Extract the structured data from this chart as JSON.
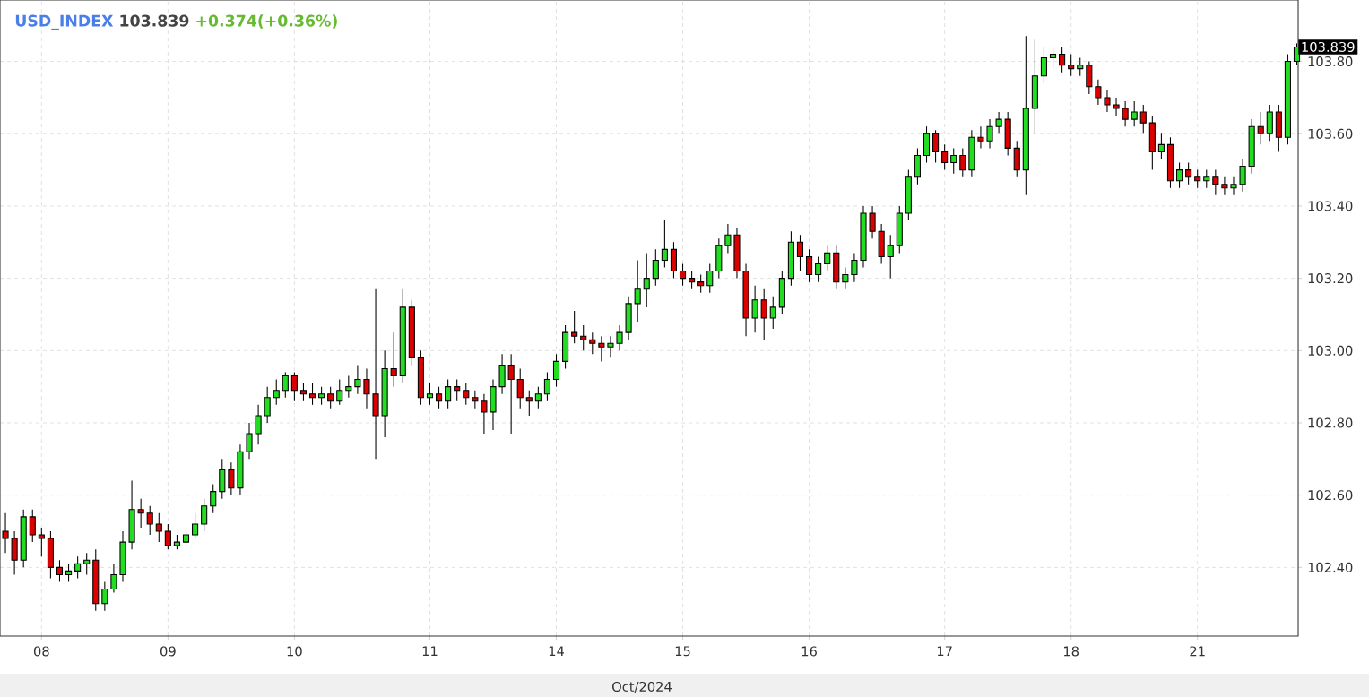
{
  "chart_data": {
    "type": "candlestick",
    "title": "USD_INDEX",
    "subtitle": "103.839",
    "annotations": [
      "+0.374(+0.36%)",
      "103.839"
    ],
    "categories": [
      null,
      null,
      null,
      null,
      "08",
      null,
      null,
      null,
      null,
      null,
      null,
      null,
      null,
      null,
      null,
      null,
      null,
      null,
      "09",
      null,
      null,
      null,
      null,
      null,
      null,
      null,
      null,
      null,
      null,
      null,
      null,
      null,
      "10",
      null,
      null,
      null,
      null,
      null,
      null,
      null,
      null,
      null,
      null,
      null,
      null,
      null,
      null,
      "11",
      null,
      null,
      null,
      null,
      null,
      null,
      null,
      null,
      null,
      null,
      null,
      null,
      null,
      "14",
      null,
      null,
      null,
      null,
      null,
      null,
      null,
      null,
      null,
      null,
      null,
      null,
      null,
      "15",
      null,
      null,
      null,
      null,
      null,
      null,
      null,
      null,
      null,
      null,
      null,
      null,
      null,
      "16",
      null,
      null,
      null,
      null,
      null,
      null,
      null,
      null,
      null,
      null,
      null,
      null,
      null,
      null,
      "17",
      null,
      null,
      null,
      null,
      null,
      null,
      null,
      null,
      null,
      null,
      null,
      null,
      null,
      "18",
      null,
      null,
      null,
      null,
      null,
      null,
      null,
      null,
      null,
      null,
      null,
      null,
      null,
      "21",
      null,
      null,
      null,
      null,
      null,
      null,
      null,
      null,
      null,
      null,
      null
    ],
    "xlabel": "Oct/2024",
    "ylim": [
      102.21,
      103.97
    ],
    "yticks": [
      {
        "value": 102.4,
        "label": "102.40"
      },
      {
        "value": 102.6,
        "label": "102.60"
      },
      {
        "value": 102.8,
        "label": "102.80"
      },
      {
        "value": 103.0,
        "label": "103.00"
      },
      {
        "value": 103.2,
        "label": "103.20"
      },
      {
        "value": 103.4,
        "label": "103.40"
      },
      {
        "value": 103.6,
        "label": "103.60"
      },
      {
        "value": 103.8,
        "label": "103.80"
      }
    ],
    "grid": true,
    "ohlc": [
      [
        102.5,
        102.55,
        102.44,
        102.48
      ],
      [
        102.48,
        102.5,
        102.38,
        102.42
      ],
      [
        102.42,
        102.56,
        102.4,
        102.54
      ],
      [
        102.54,
        102.56,
        102.47,
        102.49
      ],
      [
        102.49,
        102.51,
        102.43,
        102.48
      ],
      [
        102.48,
        102.5,
        102.37,
        102.4
      ],
      [
        102.4,
        102.42,
        102.36,
        102.38
      ],
      [
        102.38,
        102.41,
        102.36,
        102.39
      ],
      [
        102.39,
        102.43,
        102.37,
        102.41
      ],
      [
        102.41,
        102.44,
        102.38,
        102.42
      ],
      [
        102.42,
        102.45,
        102.28,
        102.3
      ],
      [
        102.3,
        102.36,
        102.28,
        102.34
      ],
      [
        102.34,
        102.41,
        102.33,
        102.38
      ],
      [
        102.38,
        102.5,
        102.36,
        102.47
      ],
      [
        102.47,
        102.64,
        102.45,
        102.56
      ],
      [
        102.56,
        102.59,
        102.51,
        102.55
      ],
      [
        102.55,
        102.57,
        102.49,
        102.52
      ],
      [
        102.52,
        102.55,
        102.47,
        102.5
      ],
      [
        102.5,
        102.52,
        102.45,
        102.46
      ],
      [
        102.46,
        102.49,
        102.45,
        102.47
      ],
      [
        102.47,
        102.51,
        102.46,
        102.49
      ],
      [
        102.49,
        102.55,
        102.48,
        102.52
      ],
      [
        102.52,
        102.59,
        102.5,
        102.57
      ],
      [
        102.57,
        102.63,
        102.55,
        102.61
      ],
      [
        102.61,
        102.7,
        102.59,
        102.67
      ],
      [
        102.67,
        102.69,
        102.6,
        102.62
      ],
      [
        102.62,
        102.74,
        102.6,
        102.72
      ],
      [
        102.72,
        102.8,
        102.7,
        102.77
      ],
      [
        102.77,
        102.85,
        102.74,
        102.82
      ],
      [
        102.82,
        102.9,
        102.8,
        102.87
      ],
      [
        102.87,
        102.92,
        102.85,
        102.89
      ],
      [
        102.89,
        102.94,
        102.87,
        102.93
      ],
      [
        102.93,
        102.94,
        102.86,
        102.89
      ],
      [
        102.89,
        102.91,
        102.86,
        102.88
      ],
      [
        102.88,
        102.91,
        102.85,
        102.87
      ],
      [
        102.87,
        102.9,
        102.85,
        102.88
      ],
      [
        102.88,
        102.9,
        102.84,
        102.86
      ],
      [
        102.86,
        102.92,
        102.85,
        102.89
      ],
      [
        102.89,
        102.93,
        102.87,
        102.9
      ],
      [
        102.9,
        102.96,
        102.88,
        102.92
      ],
      [
        102.92,
        102.95,
        102.84,
        102.88
      ],
      [
        102.88,
        103.17,
        102.7,
        102.82
      ],
      [
        102.82,
        103.0,
        102.76,
        102.95
      ],
      [
        102.95,
        103.05,
        102.9,
        102.93
      ],
      [
        102.93,
        103.17,
        102.91,
        103.12
      ],
      [
        103.12,
        103.14,
        102.96,
        102.98
      ],
      [
        102.98,
        103.0,
        102.85,
        102.87
      ],
      [
        102.87,
        102.91,
        102.85,
        102.88
      ],
      [
        102.88,
        102.9,
        102.84,
        102.86
      ],
      [
        102.86,
        102.92,
        102.84,
        102.9
      ],
      [
        102.9,
        102.92,
        102.86,
        102.89
      ],
      [
        102.89,
        102.91,
        102.85,
        102.87
      ],
      [
        102.87,
        102.89,
        102.84,
        102.86
      ],
      [
        102.86,
        102.88,
        102.77,
        102.83
      ],
      [
        102.83,
        102.92,
        102.78,
        102.9
      ],
      [
        102.9,
        102.99,
        102.88,
        102.96
      ],
      [
        102.96,
        102.99,
        102.77,
        102.92
      ],
      [
        102.92,
        102.95,
        102.84,
        102.87
      ],
      [
        102.87,
        102.89,
        102.82,
        102.86
      ],
      [
        102.86,
        102.9,
        102.84,
        102.88
      ],
      [
        102.88,
        102.94,
        102.86,
        102.92
      ],
      [
        102.92,
        102.99,
        102.9,
        102.97
      ],
      [
        102.97,
        103.07,
        102.95,
        103.05
      ],
      [
        103.05,
        103.11,
        103.02,
        103.04
      ],
      [
        103.04,
        103.07,
        103.0,
        103.03
      ],
      [
        103.03,
        103.05,
        102.99,
        103.02
      ],
      [
        103.02,
        103.04,
        102.97,
        103.01
      ],
      [
        103.01,
        103.04,
        102.98,
        103.02
      ],
      [
        103.02,
        103.07,
        103.0,
        103.05
      ],
      [
        103.05,
        103.15,
        103.03,
        103.13
      ],
      [
        103.13,
        103.25,
        103.08,
        103.17
      ],
      [
        103.17,
        103.27,
        103.12,
        103.2
      ],
      [
        103.2,
        103.28,
        103.18,
        103.25
      ],
      [
        103.25,
        103.36,
        103.23,
        103.28
      ],
      [
        103.28,
        103.3,
        103.2,
        103.22
      ],
      [
        103.22,
        103.24,
        103.18,
        103.2
      ],
      [
        103.2,
        103.22,
        103.17,
        103.19
      ],
      [
        103.19,
        103.21,
        103.16,
        103.18
      ],
      [
        103.18,
        103.24,
        103.16,
        103.22
      ],
      [
        103.22,
        103.31,
        103.2,
        103.29
      ],
      [
        103.29,
        103.35,
        103.27,
        103.32
      ],
      [
        103.32,
        103.34,
        103.2,
        103.22
      ],
      [
        103.22,
        103.24,
        103.04,
        103.09
      ],
      [
        103.09,
        103.18,
        103.05,
        103.14
      ],
      [
        103.14,
        103.17,
        103.03,
        103.09
      ],
      [
        103.09,
        103.15,
        103.06,
        103.12
      ],
      [
        103.12,
        103.22,
        103.1,
        103.2
      ],
      [
        103.2,
        103.33,
        103.18,
        103.3
      ],
      [
        103.3,
        103.32,
        103.22,
        103.26
      ],
      [
        103.26,
        103.28,
        103.19,
        103.21
      ],
      [
        103.21,
        103.26,
        103.19,
        103.24
      ],
      [
        103.24,
        103.29,
        103.22,
        103.27
      ],
      [
        103.27,
        103.29,
        103.17,
        103.19
      ],
      [
        103.19,
        103.23,
        103.17,
        103.21
      ],
      [
        103.21,
        103.27,
        103.19,
        103.25
      ],
      [
        103.25,
        103.4,
        103.23,
        103.38
      ],
      [
        103.38,
        103.4,
        103.31,
        103.33
      ],
      [
        103.33,
        103.35,
        103.24,
        103.26
      ],
      [
        103.26,
        103.32,
        103.2,
        103.29
      ],
      [
        103.29,
        103.4,
        103.27,
        103.38
      ],
      [
        103.38,
        103.5,
        103.36,
        103.48
      ],
      [
        103.48,
        103.56,
        103.46,
        103.54
      ],
      [
        103.54,
        103.62,
        103.52,
        103.6
      ],
      [
        103.6,
        103.61,
        103.52,
        103.55
      ],
      [
        103.55,
        103.57,
        103.5,
        103.52
      ],
      [
        103.52,
        103.56,
        103.49,
        103.54
      ],
      [
        103.54,
        103.56,
        103.48,
        103.5
      ],
      [
        103.5,
        103.61,
        103.48,
        103.59
      ],
      [
        103.59,
        103.62,
        103.56,
        103.58
      ],
      [
        103.58,
        103.64,
        103.56,
        103.62
      ],
      [
        103.62,
        103.66,
        103.6,
        103.64
      ],
      [
        103.64,
        103.66,
        103.54,
        103.56
      ],
      [
        103.56,
        103.58,
        103.48,
        103.5
      ],
      [
        103.5,
        103.87,
        103.43,
        103.67
      ],
      [
        103.67,
        103.86,
        103.6,
        103.76
      ],
      [
        103.76,
        103.84,
        103.74,
        103.81
      ],
      [
        103.81,
        103.84,
        103.78,
        103.82
      ],
      [
        103.82,
        103.84,
        103.77,
        103.79
      ],
      [
        103.79,
        103.82,
        103.76,
        103.78
      ],
      [
        103.78,
        103.81,
        103.76,
        103.79
      ],
      [
        103.79,
        103.8,
        103.71,
        103.73
      ],
      [
        103.73,
        103.75,
        103.68,
        103.7
      ],
      [
        103.7,
        103.72,
        103.66,
        103.68
      ],
      [
        103.68,
        103.7,
        103.65,
        103.67
      ],
      [
        103.67,
        103.69,
        103.62,
        103.64
      ],
      [
        103.64,
        103.69,
        103.62,
        103.66
      ],
      [
        103.66,
        103.68,
        103.6,
        103.63
      ],
      [
        103.63,
        103.65,
        103.5,
        103.55
      ],
      [
        103.55,
        103.6,
        103.53,
        103.57
      ],
      [
        103.57,
        103.59,
        103.45,
        103.47
      ],
      [
        103.47,
        103.52,
        103.45,
        103.5
      ],
      [
        103.5,
        103.52,
        103.46,
        103.48
      ],
      [
        103.48,
        103.5,
        103.45,
        103.47
      ],
      [
        103.47,
        103.5,
        103.45,
        103.48
      ],
      [
        103.48,
        103.5,
        103.43,
        103.46
      ],
      [
        103.46,
        103.48,
        103.43,
        103.45
      ],
      [
        103.45,
        103.48,
        103.43,
        103.46
      ],
      [
        103.46,
        103.53,
        103.44,
        103.51
      ],
      [
        103.51,
        103.64,
        103.49,
        103.62
      ],
      [
        103.62,
        103.66,
        103.57,
        103.6
      ],
      [
        103.6,
        103.68,
        103.58,
        103.66
      ],
      [
        103.66,
        103.68,
        103.55,
        103.59
      ],
      [
        103.59,
        103.82,
        103.57,
        103.8
      ],
      [
        103.8,
        103.85,
        103.79,
        103.84
      ]
    ]
  }
}
